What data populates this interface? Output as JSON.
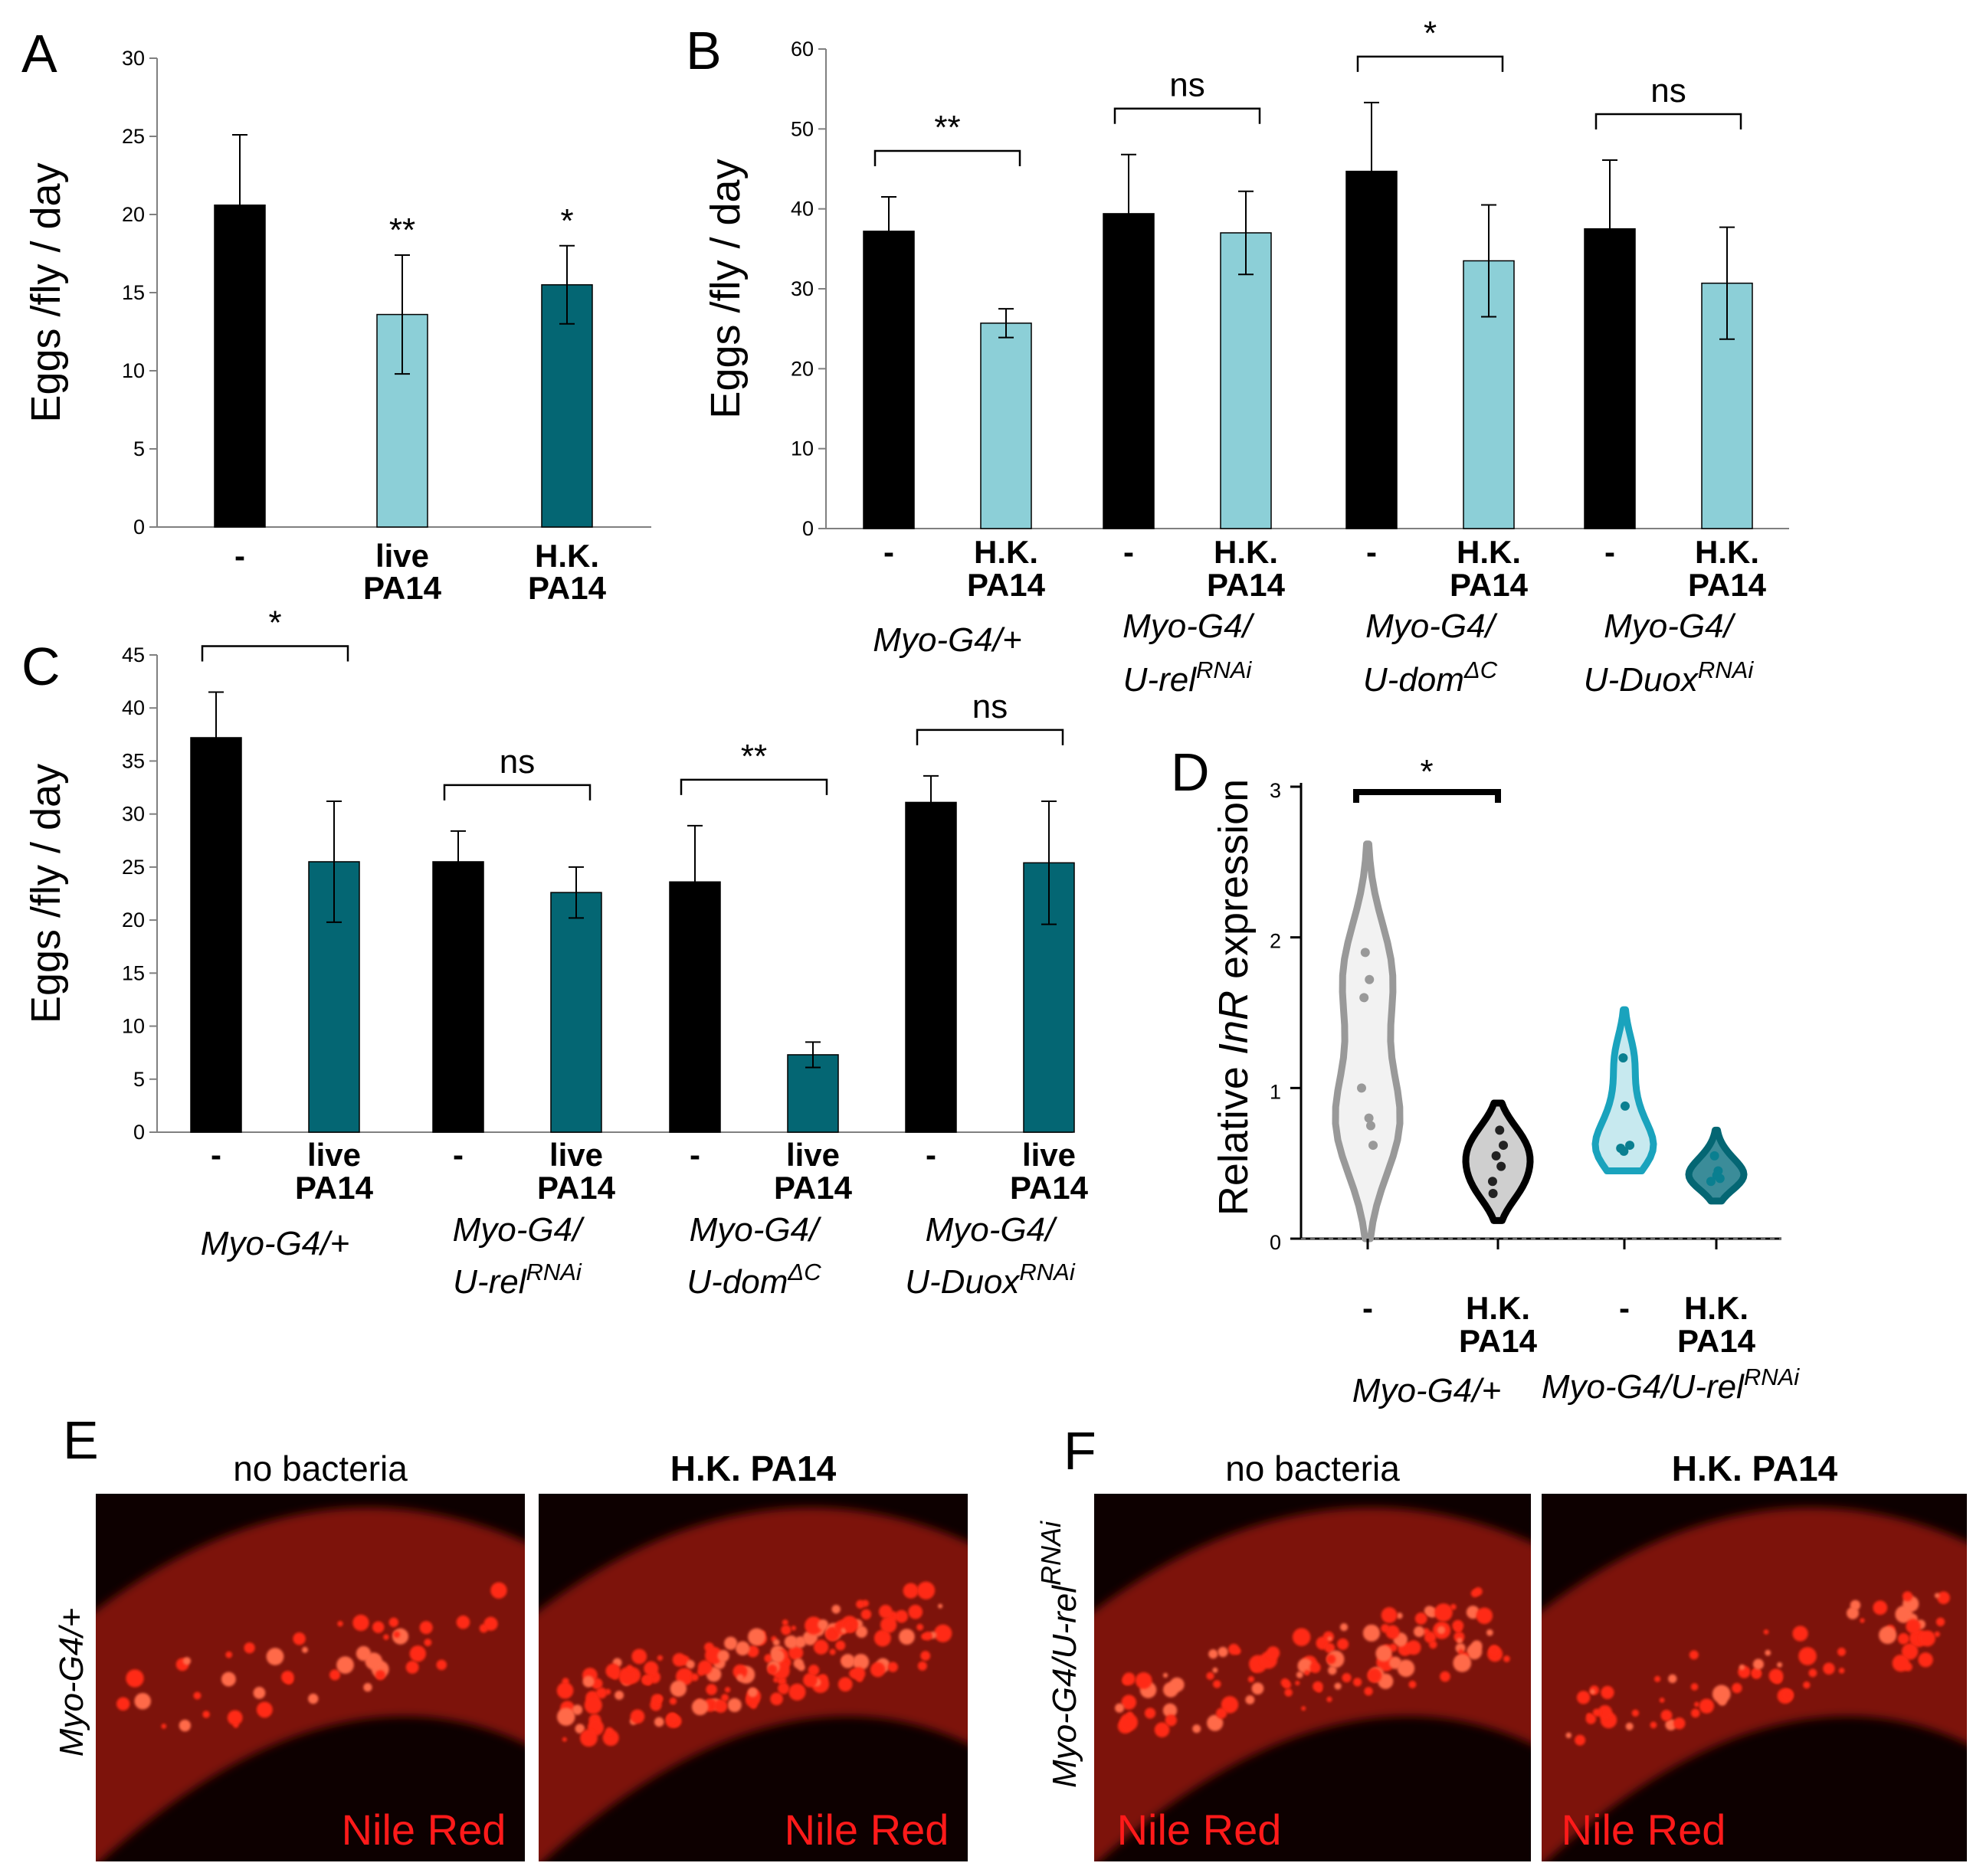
{
  "chart_data": [
    {
      "id": "A",
      "type": "bar",
      "panel_label": "A",
      "ylabel": "Eggs /fly / day",
      "ylim": [
        0,
        30
      ],
      "yticks": [
        0,
        5,
        10,
        15,
        20,
        25,
        30
      ],
      "categories": [
        {
          "l1": "-",
          "l2": ""
        },
        {
          "l1": "live",
          "l2": "PA14"
        },
        {
          "l1": "H.K.",
          "l2": "PA14"
        }
      ],
      "values": [
        20.6,
        13.6,
        15.5
      ],
      "errors": [
        4.5,
        3.8,
        2.5
      ],
      "colors": [
        "#000000",
        "#8ccfd7",
        "#046673"
      ],
      "marks": [
        "",
        "**",
        "*"
      ]
    },
    {
      "id": "B",
      "type": "bar",
      "panel_label": "B",
      "ylabel": "Eggs /fly / day",
      "ylim": [
        0,
        60
      ],
      "yticks": [
        0,
        10,
        20,
        30,
        40,
        50,
        60
      ],
      "groups": [
        {
          "genotype": "Myo-G4/+",
          "sup": "",
          "values": [
            37.2,
            25.7
          ],
          "errors": [
            4.3,
            1.8
          ],
          "sig": "**"
        },
        {
          "genotype": "Myo-G4/",
          "genotype2": "U-rel",
          "sup": "RNAi",
          "values": [
            39.4,
            37.0
          ],
          "errors": [
            7.4,
            5.2
          ],
          "sig": "ns"
        },
        {
          "genotype": "Myo-G4/",
          "genotype2": "U-dom",
          "sup": "ΔC",
          "values": [
            44.7,
            33.5
          ],
          "errors": [
            8.6,
            7.0
          ],
          "sig": "*"
        },
        {
          "genotype": "Myo-G4/",
          "genotype2": "U-Duox",
          "sup": "RNAi",
          "values": [
            37.5,
            30.7
          ],
          "errors": [
            8.6,
            7.0
          ],
          "sig": "ns"
        }
      ],
      "cat_labels": [
        {
          "l1": "-",
          "l2": ""
        },
        {
          "l1": "H.K.",
          "l2": "PA14"
        }
      ],
      "colors": [
        "#000000",
        "#8ccfd7"
      ]
    },
    {
      "id": "C",
      "type": "bar",
      "panel_label": "C",
      "ylabel": "Eggs /fly / day",
      "ylim": [
        0,
        45
      ],
      "yticks": [
        0,
        5,
        10,
        15,
        20,
        25,
        30,
        35,
        40,
        45
      ],
      "groups": [
        {
          "genotype": "Myo-G4/+",
          "sup": "",
          "values": [
            37.2,
            25.5
          ],
          "errors": [
            4.3,
            5.7
          ],
          "sig": "*"
        },
        {
          "genotype": "Myo-G4/",
          "genotype2": "U-rel",
          "sup": "RNAi",
          "values": [
            25.5,
            22.6
          ],
          "errors": [
            2.9,
            2.4
          ],
          "sig": "ns"
        },
        {
          "genotype": "Myo-G4/",
          "genotype2": "U-dom",
          "sup": "ΔC",
          "values": [
            23.6,
            7.3
          ],
          "errors": [
            5.3,
            1.2
          ],
          "sig": "**"
        },
        {
          "genotype": "Myo-G4/",
          "genotype2": "U-Duox",
          "sup": "RNAi",
          "values": [
            31.1,
            25.4
          ],
          "errors": [
            2.5,
            5.8
          ],
          "sig": "ns"
        }
      ],
      "cat_labels": [
        {
          "l1": "-",
          "l2": ""
        },
        {
          "l1": "live",
          "l2": "PA14"
        }
      ],
      "colors": [
        "#000000",
        "#046673"
      ]
    },
    {
      "id": "D",
      "type": "violin",
      "panel_label": "D",
      "ylabel_pre": "Relative ",
      "ylabel_it": "InR",
      "ylabel_post": " expression",
      "ylim": [
        0,
        3
      ],
      "yticks": [
        0,
        1,
        2,
        3
      ],
      "violins": [
        {
          "label": "-",
          "range": [
            0,
            2.62
          ],
          "points": [
            1.9,
            1.72,
            1.6,
            1.0,
            0.8,
            0.75,
            0.62
          ],
          "color": "#999999"
        },
        {
          "label": "H.K. PA14",
          "range": [
            0.12,
            0.9
          ],
          "points": [
            0.72,
            0.62,
            0.55,
            0.48,
            0.38,
            0.3
          ],
          "color": "#000000"
        },
        {
          "label": "-",
          "range": [
            0.45,
            1.52
          ],
          "points": [
            1.2,
            0.88,
            0.62,
            0.6,
            0.58
          ],
          "color": "#1aa3bd"
        },
        {
          "label": "H.K. PA14",
          "range": [
            0.25,
            0.72
          ],
          "points": [
            0.55,
            0.45,
            0.42,
            0.4,
            0.38
          ],
          "color": "#046673"
        }
      ],
      "genotypes": [
        {
          "genotype": "Myo-G4/+",
          "sup": ""
        },
        {
          "genotype": "Myo-G4/U-rel",
          "sup": "RNAi"
        }
      ],
      "sig": "*"
    }
  ],
  "panels": {
    "E": {
      "label": "E",
      "side": "Myo-G4/+",
      "side_sup": "",
      "left_title": "no bacteria",
      "right_title": "H.K. PA14",
      "stain": "Nile Red"
    },
    "F": {
      "label": "F",
      "side": "Myo-G4/U-rel",
      "side_sup": "RNAi",
      "left_title": "no bacteria",
      "right_title": "H.K. PA14",
      "stain": "Nile Red"
    }
  }
}
